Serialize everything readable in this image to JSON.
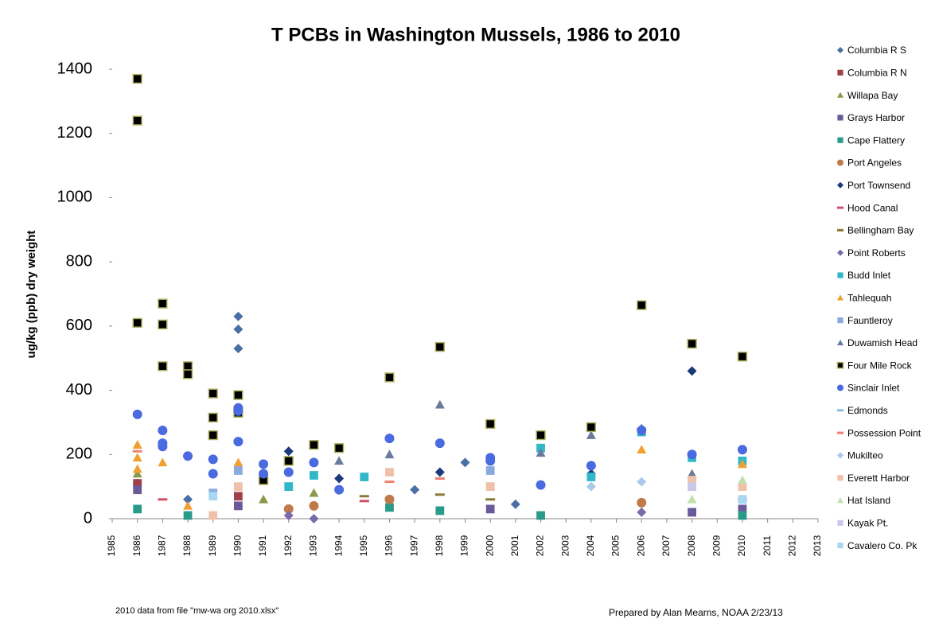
{
  "chart_data": {
    "type": "scatter",
    "title": "T PCBs in Washington Mussels, 1986 to 2010",
    "y_label": "ug/kg (ppb) dry weight",
    "notes": [
      "2010 data from file \"mw-wa org 2010.xlsx\"",
      "Prepared by Alan Mearns, NOAA 2/23/13"
    ],
    "xlim": [
      1985,
      2013
    ],
    "xticks": [
      1985,
      1986,
      1987,
      1988,
      1989,
      1990,
      1991,
      1992,
      1993,
      1994,
      1995,
      1996,
      1997,
      1998,
      1999,
      2000,
      2001,
      2002,
      2003,
      2004,
      2005,
      2006,
      2007,
      2008,
      2009,
      2010,
      2011,
      2012,
      2013
    ],
    "ylim": [
      0,
      1400
    ],
    "yticks": [
      0,
      200,
      400,
      600,
      800,
      1000,
      1200,
      1400
    ],
    "legend": "right",
    "series": [
      {
        "name": "Columbia R S",
        "color": "#4a6fa5",
        "marker": "diamond",
        "x": [
          1986,
          1988,
          1990,
          1990,
          1990,
          1997,
          1999,
          2001,
          2006
        ],
        "values": [
          110,
          60,
          630,
          590,
          530,
          90,
          175,
          45,
          280
        ]
      },
      {
        "name": "Columbia R N",
        "color": "#a0404a",
        "marker": "square",
        "x": [
          1986,
          1990
        ],
        "values": [
          110,
          70
        ]
      },
      {
        "name": "Willapa Bay",
        "color": "#8a9a4a",
        "marker": "triangle",
        "x": [
          1986,
          1993,
          1991
        ],
        "values": [
          140,
          80,
          60
        ]
      },
      {
        "name": "Grays Harbor",
        "color": "#6a5a9a",
        "marker": "square",
        "x": [
          1986,
          1990,
          2000,
          2008,
          2010
        ],
        "values": [
          90,
          40,
          30,
          20,
          30
        ]
      },
      {
        "name": "Cape Flattery",
        "color": "#2a9a8a",
        "marker": "square",
        "x": [
          1986,
          1988,
          1996,
          1998,
          2002,
          2010
        ],
        "values": [
          30,
          10,
          35,
          25,
          10,
          10
        ]
      },
      {
        "name": "Port Angeles",
        "color": "#c07a4a",
        "marker": "circle",
        "x": [
          1992,
          1996,
          2006,
          1993
        ],
        "values": [
          30,
          60,
          50,
          40
        ]
      },
      {
        "name": "Port Townsend",
        "color": "#1a3a7a",
        "marker": "diamond",
        "x": [
          1992,
          1994,
          1998,
          2004,
          2008
        ],
        "values": [
          210,
          125,
          145,
          140,
          460
        ]
      },
      {
        "name": "Hood Canal",
        "color": "#d0506a",
        "marker": "dash",
        "x": [
          1987,
          1995
        ],
        "values": [
          60,
          55
        ]
      },
      {
        "name": "Bellingham Bay",
        "color": "#8a7a3a",
        "marker": "dash",
        "x": [
          1995,
          1998,
          2000
        ],
        "values": [
          70,
          75,
          60
        ]
      },
      {
        "name": "Point Roberts",
        "color": "#7a6aaa",
        "marker": "diamond",
        "x": [
          1992,
          1993,
          2006
        ],
        "values": [
          10,
          0,
          20
        ]
      },
      {
        "name": "Budd Inlet",
        "color": "#30b8c8",
        "marker": "square",
        "x": [
          1992,
          1993,
          1995,
          2002,
          2004,
          2006,
          2008,
          2010
        ],
        "values": [
          100,
          135,
          130,
          220,
          130,
          270,
          190,
          180
        ]
      },
      {
        "name": "Tahlequah",
        "color": "#f0a030",
        "marker": "triangle",
        "x": [
          1986,
          1986,
          1986,
          1987,
          1988,
          1990,
          2006,
          2010
        ],
        "values": [
          230,
          190,
          155,
          175,
          40,
          175,
          215,
          170
        ]
      },
      {
        "name": "Fauntleroy",
        "color": "#8aaadc",
        "marker": "square",
        "x": [
          1989,
          1990,
          2000
        ],
        "values": [
          80,
          150,
          150
        ]
      },
      {
        "name": "Duwamish Head",
        "color": "#6a7a9a",
        "marker": "triangle",
        "x": [
          1994,
          1996,
          1998,
          2002,
          2004,
          2006,
          2008
        ],
        "values": [
          180,
          200,
          355,
          205,
          260,
          280,
          140
        ]
      },
      {
        "name": "Four Mile Rock",
        "color": "#000000",
        "marker": "square",
        "x": [
          1986,
          1986,
          1986,
          1987,
          1987,
          1987,
          1988,
          1988,
          1989,
          1989,
          1989,
          1990,
          1990,
          1991,
          1992,
          1993,
          1994,
          1996,
          1998,
          2000,
          2002,
          2004,
          2006,
          2008,
          2010
        ],
        "values": [
          1370,
          1240,
          610,
          670,
          605,
          475,
          475,
          450,
          390,
          315,
          260,
          385,
          330,
          120,
          180,
          230,
          220,
          440,
          535,
          295,
          260,
          285,
          665,
          545,
          505
        ]
      },
      {
        "name": "Sinclair Inlet",
        "color": "#4a6ae0",
        "marker": "circle",
        "x": [
          1986,
          1987,
          1987,
          1987,
          1988,
          1989,
          1989,
          1990,
          1990,
          1990,
          1991,
          1991,
          1992,
          1993,
          1994,
          1996,
          1998,
          2000,
          2000,
          2002,
          2004,
          2006,
          2008,
          2010
        ],
        "values": [
          325,
          275,
          235,
          225,
          195,
          185,
          140,
          345,
          335,
          240,
          170,
          140,
          145,
          175,
          90,
          250,
          235,
          190,
          180,
          105,
          165,
          275,
          200,
          215
        ]
      },
      {
        "name": "Edmonds",
        "color": "#8ac0e0",
        "marker": "dash",
        "x": [
          2010
        ],
        "values": [
          60
        ]
      },
      {
        "name": "Possession Point",
        "color": "#f08070",
        "marker": "dash",
        "x": [
          1986,
          1996,
          1998
        ],
        "values": [
          210,
          115,
          125
        ]
      },
      {
        "name": "Mukilteo",
        "color": "#a8c8ec",
        "marker": "diamond",
        "x": [
          2004,
          2006
        ],
        "values": [
          100,
          115
        ]
      },
      {
        "name": "Everett Harbor",
        "color": "#f0c0a8",
        "marker": "square",
        "x": [
          1989,
          1990,
          1996,
          2000,
          2008,
          2010
        ],
        "values": [
          10,
          100,
          145,
          100,
          120,
          100
        ]
      },
      {
        "name": "Hat Island",
        "color": "#c0e0b0",
        "marker": "triangle",
        "x": [
          2008,
          2010
        ],
        "values": [
          60,
          120
        ]
      },
      {
        "name": "Kayak Pt.",
        "color": "#c8c8e8",
        "marker": "square",
        "x": [
          2008,
          2010
        ],
        "values": [
          100,
          60
        ]
      },
      {
        "name": "Cavalero Co. Pk",
        "color": "#a8d8f0",
        "marker": "square",
        "x": [
          1989,
          2010
        ],
        "values": [
          70,
          60
        ]
      }
    ]
  }
}
